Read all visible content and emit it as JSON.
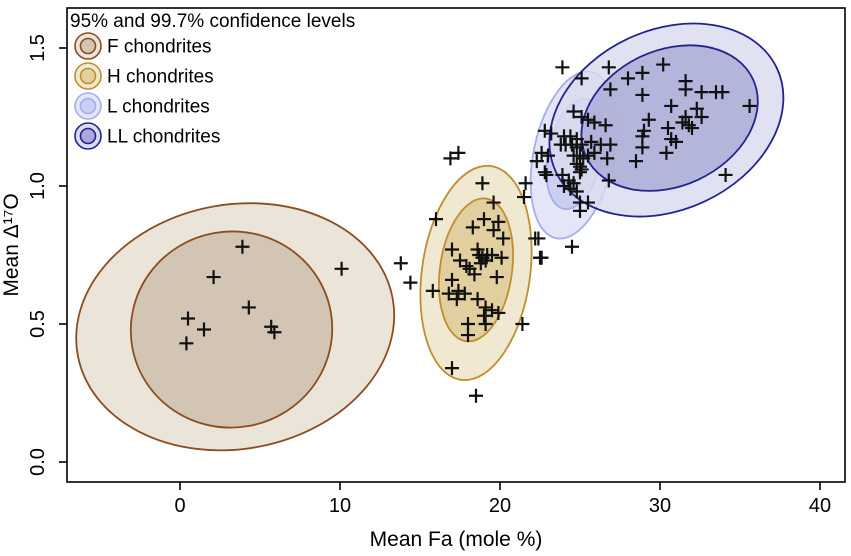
{
  "legend": {
    "title": "95% and 99.7% confidence levels",
    "items": [
      {
        "key": "F",
        "label": "F chondrites",
        "border": "#8a4e20",
        "outer_fill": "#ebe4d9",
        "inner_fill": "#d2c5b4"
      },
      {
        "key": "H",
        "label": "H chondrites",
        "border": "#bf8f2f",
        "outer_fill": "#f0e8d0",
        "inner_fill": "#e2cfa0"
      },
      {
        "key": "L",
        "label": "L chondrites",
        "border": "#a3aeec",
        "outer_fill": "#e4e6f7",
        "inner_fill": "#ccd0f0"
      },
      {
        "key": "LL",
        "label": "LL chondrites",
        "border": "#23238f",
        "outer_fill": "#d9dbee",
        "inner_fill": "#a9abd6"
      }
    ]
  },
  "chart_data": {
    "type": "scatter",
    "title": "",
    "xlabel": "Mean Fa (mole %)",
    "ylabel": "Mean Δ¹⁷O",
    "xlim": [
      -7.1,
      41.6
    ],
    "ylim": [
      -0.07,
      1.645
    ],
    "x_ticks": [
      0,
      10,
      20,
      30,
      40
    ],
    "y_ticks": [
      0.0,
      0.5,
      1.0,
      1.5
    ],
    "grid": false,
    "marker": "+",
    "marker_color": "#111111",
    "legend_position": "top-left",
    "confidence_levels": [
      "95%",
      "99.7%"
    ],
    "series": [
      {
        "name": "F chondrites",
        "key": "F",
        "points": [
          [
            3.9,
            0.78
          ],
          [
            2.1,
            0.67
          ],
          [
            10.1,
            0.7
          ],
          [
            4.3,
            0.56
          ],
          [
            0.5,
            0.52
          ],
          [
            1.5,
            0.48
          ],
          [
            5.7,
            0.49
          ],
          [
            5.9,
            0.47
          ],
          [
            0.4,
            0.43
          ]
        ]
      },
      {
        "name": "H chondrites",
        "key": "H",
        "points": [
          [
            17.4,
            1.12
          ],
          [
            16.9,
            1.1
          ],
          [
            18.9,
            1.01
          ],
          [
            19.6,
            0.94
          ],
          [
            21.6,
            1.01
          ],
          [
            21.5,
            0.96
          ],
          [
            16.0,
            0.88
          ],
          [
            18.3,
            0.85
          ],
          [
            19.0,
            0.88
          ],
          [
            19.9,
            0.87
          ],
          [
            19.6,
            0.84
          ],
          [
            20.2,
            0.81
          ],
          [
            22.4,
            0.81
          ],
          [
            22.5,
            0.74
          ],
          [
            17.0,
            0.77
          ],
          [
            17.5,
            0.73
          ],
          [
            18.6,
            0.77
          ],
          [
            18.7,
            0.75
          ],
          [
            18.9,
            0.74
          ],
          [
            19.1,
            0.73
          ],
          [
            18.8,
            0.72
          ],
          [
            19.2,
            0.75
          ],
          [
            17.9,
            0.71
          ],
          [
            19.5,
            0.75
          ],
          [
            20.1,
            0.74
          ],
          [
            18.1,
            0.7
          ],
          [
            18.4,
            0.68
          ],
          [
            19.8,
            0.67
          ],
          [
            17.0,
            0.66
          ],
          [
            15.8,
            0.62
          ],
          [
            16.8,
            0.61
          ],
          [
            17.4,
            0.62
          ],
          [
            17.8,
            0.61
          ],
          [
            17.3,
            0.59
          ],
          [
            18.6,
            0.59
          ],
          [
            19.1,
            0.56
          ],
          [
            19.5,
            0.55
          ],
          [
            19.9,
            0.54
          ],
          [
            19.0,
            0.53
          ],
          [
            18.0,
            0.5
          ],
          [
            19.1,
            0.5
          ],
          [
            21.4,
            0.5
          ],
          [
            18.0,
            0.46
          ],
          [
            17.0,
            0.34
          ],
          [
            18.5,
            0.24
          ],
          [
            13.8,
            0.72
          ],
          [
            14.4,
            0.65
          ]
        ]
      },
      {
        "name": "L chondrites",
        "key": "L",
        "points": [
          [
            22.8,
            1.2
          ],
          [
            23.2,
            1.19
          ],
          [
            24.0,
            1.18
          ],
          [
            24.4,
            1.18
          ],
          [
            24.8,
            1.17
          ],
          [
            23.8,
            1.15
          ],
          [
            24.1,
            1.15
          ],
          [
            24.5,
            1.15
          ],
          [
            24.8,
            1.14
          ],
          [
            25.1,
            1.15
          ],
          [
            25.7,
            1.16
          ],
          [
            26.3,
            1.15
          ],
          [
            26.9,
            1.15
          ],
          [
            22.6,
            1.12
          ],
          [
            23.0,
            1.11
          ],
          [
            22.3,
            1.09
          ],
          [
            24.6,
            1.27
          ],
          [
            25.1,
            1.25
          ],
          [
            25.5,
            1.24
          ],
          [
            25.9,
            1.23
          ],
          [
            26.6,
            1.22
          ],
          [
            24.6,
            1.11
          ],
          [
            25.0,
            1.11
          ],
          [
            25.2,
            1.1
          ],
          [
            25.5,
            1.11
          ],
          [
            25.9,
            1.12
          ],
          [
            26.7,
            1.1
          ],
          [
            22.8,
            1.05
          ],
          [
            22.9,
            1.04
          ],
          [
            23.9,
            1.04
          ],
          [
            24.3,
            1.02
          ],
          [
            24.6,
            1.01
          ],
          [
            25.0,
            1.05
          ],
          [
            24.8,
            1.08
          ],
          [
            25.0,
            1.07
          ],
          [
            25.1,
            1.06
          ],
          [
            24.0,
            1.0
          ],
          [
            24.4,
            0.99
          ],
          [
            24.8,
            0.98
          ],
          [
            25.0,
            0.94
          ],
          [
            25.5,
            0.94
          ],
          [
            25.0,
            0.91
          ],
          [
            26.8,
            1.02
          ],
          [
            24.5,
            0.78
          ],
          [
            22.6,
            0.74
          ],
          [
            22.2,
            0.81
          ],
          [
            28.5,
            1.09
          ]
        ]
      },
      {
        "name": "LL chondrites",
        "key": "LL",
        "points": [
          [
            23.9,
            1.43
          ],
          [
            25.1,
            1.39
          ],
          [
            26.8,
            1.43
          ],
          [
            28.0,
            1.39
          ],
          [
            28.9,
            1.41
          ],
          [
            26.9,
            1.35
          ],
          [
            30.2,
            1.44
          ],
          [
            28.9,
            1.33
          ],
          [
            31.6,
            1.35
          ],
          [
            32.6,
            1.34
          ],
          [
            33.5,
            1.34
          ],
          [
            33.9,
            1.34
          ],
          [
            31.6,
            1.38
          ],
          [
            30.7,
            1.29
          ],
          [
            32.3,
            1.28
          ],
          [
            35.6,
            1.29
          ],
          [
            31.6,
            1.25
          ],
          [
            31.4,
            1.23
          ],
          [
            31.8,
            1.22
          ],
          [
            32.6,
            1.25
          ],
          [
            30.5,
            1.21
          ],
          [
            32.0,
            1.21
          ],
          [
            29.0,
            1.2
          ],
          [
            29.3,
            1.24
          ],
          [
            28.9,
            1.18
          ],
          [
            30.7,
            1.17
          ],
          [
            31.0,
            1.16
          ],
          [
            28.9,
            1.14
          ],
          [
            30.4,
            1.12
          ],
          [
            34.1,
            1.04
          ]
        ]
      }
    ],
    "ellipses": [
      {
        "series": "F",
        "level": "99.7%",
        "cx": 3.45,
        "cy": 0.49,
        "rx": 10.0,
        "ry": 0.443,
        "angle": -10
      },
      {
        "series": "F",
        "level": "95%",
        "cx": 3.22,
        "cy": 0.48,
        "rx": 6.3,
        "ry": 0.355,
        "angle": -10
      },
      {
        "series": "H",
        "level": "99.7%",
        "cx": 18.5,
        "cy": 0.685,
        "rx": 3.38,
        "ry": 0.391,
        "angle": 8
      },
      {
        "series": "H",
        "level": "95%",
        "cx": 18.5,
        "cy": 0.696,
        "rx": 2.25,
        "ry": 0.261,
        "angle": 8
      },
      {
        "series": "L",
        "level": "99.7%",
        "cx": 24.6,
        "cy": 1.112,
        "rx": 2.5,
        "ry": 0.308,
        "angle": 12
      },
      {
        "series": "L",
        "level": "95%",
        "cx": 24.7,
        "cy": 1.116,
        "rx": 1.69,
        "ry": 0.203,
        "angle": 12
      },
      {
        "series": "LL",
        "level": "99.7%",
        "cx": 30.4,
        "cy": 1.239,
        "rx": 7.63,
        "ry": 0.326,
        "angle": -25
      },
      {
        "series": "LL",
        "level": "95%",
        "cx": 30.6,
        "cy": 1.246,
        "rx": 5.75,
        "ry": 0.246,
        "angle": -25
      }
    ]
  }
}
